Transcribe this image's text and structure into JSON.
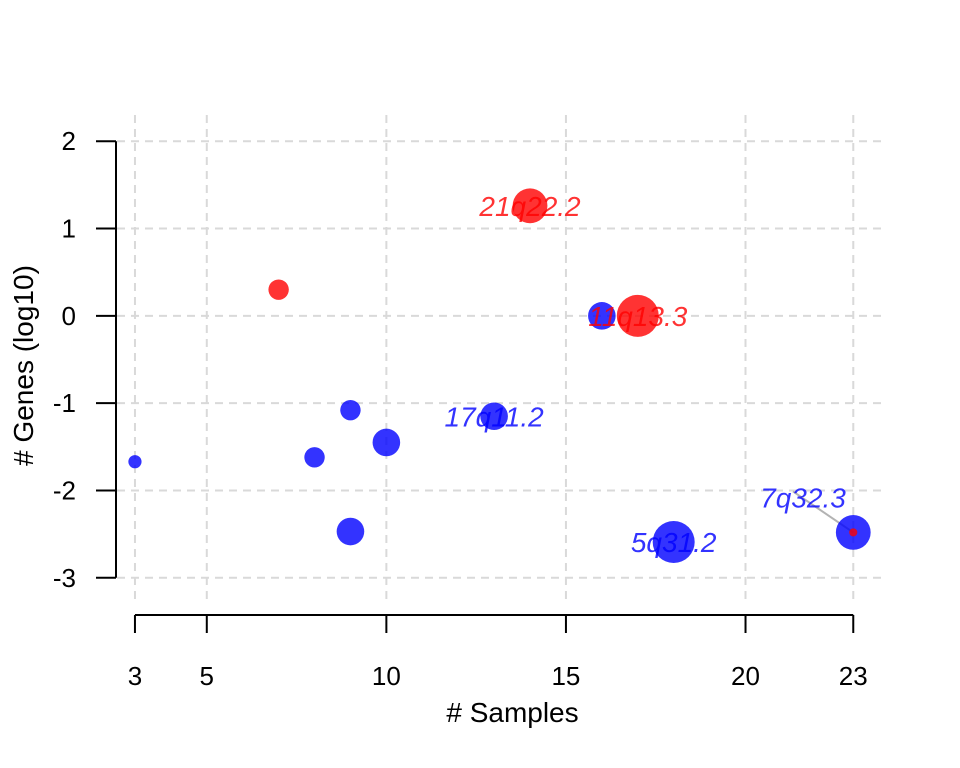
{
  "chart_data": {
    "type": "scatter",
    "title": "",
    "xlabel": "# Samples",
    "ylabel": "# Genes (log10)",
    "xlim": [
      2.5,
      23.8
    ],
    "ylim": [
      -3.3,
      2.3
    ],
    "xticks": [
      3,
      5,
      10,
      15,
      20,
      23
    ],
    "yticks": [
      -3,
      -2,
      -1,
      0,
      1,
      2
    ],
    "xgrid": [
      3,
      5,
      10,
      15,
      20,
      23
    ],
    "ygrid": [
      -3,
      -2,
      -1,
      0,
      1,
      2
    ],
    "grid": true,
    "colors": {
      "amp": "#ff0000",
      "del": "#0000ff"
    },
    "points": [
      {
        "x": 3,
        "y": -1.67,
        "size": 1,
        "color": "del"
      },
      {
        "x": 7,
        "y": 0.3,
        "size": 2,
        "color": "amp"
      },
      {
        "x": 8,
        "y": -1.62,
        "size": 2,
        "color": "del"
      },
      {
        "x": 9,
        "y": -1.08,
        "size": 2,
        "color": "del"
      },
      {
        "x": 9,
        "y": -2.47,
        "size": 3,
        "color": "del"
      },
      {
        "x": 10,
        "y": -1.45,
        "size": 3,
        "color": "del"
      },
      {
        "x": 13,
        "y": -1.15,
        "size": 3,
        "color": "del"
      },
      {
        "x": 14,
        "y": 1.26,
        "size": 4,
        "color": "amp"
      },
      {
        "x": 16,
        "y": 0.0,
        "size": 3,
        "color": "del"
      },
      {
        "x": 17,
        "y": 0.0,
        "size": 5,
        "color": "amp"
      },
      {
        "x": 18,
        "y": -2.59,
        "size": 5,
        "color": "del"
      },
      {
        "x": 23,
        "y": -2.48,
        "size": 4,
        "color": "del"
      },
      {
        "x": 23,
        "y": -2.48,
        "size": 0.3,
        "color": "amp"
      }
    ],
    "annotations": [
      {
        "text": "21q22.2",
        "x": 14,
        "y": 1.26,
        "color": "amp"
      },
      {
        "text": "11q13.3",
        "x": 17,
        "y": 0.0,
        "color": "amp"
      },
      {
        "text": "17q11.2",
        "x": 13,
        "y": -1.15,
        "color": "del"
      },
      {
        "text": "5q31.2",
        "x": 18,
        "y": -2.59,
        "color": "del"
      },
      {
        "text": "7q32.3",
        "x": 21.6,
        "y": -2.08,
        "color": "del",
        "leader_to": [
          23,
          -2.48
        ]
      }
    ]
  }
}
